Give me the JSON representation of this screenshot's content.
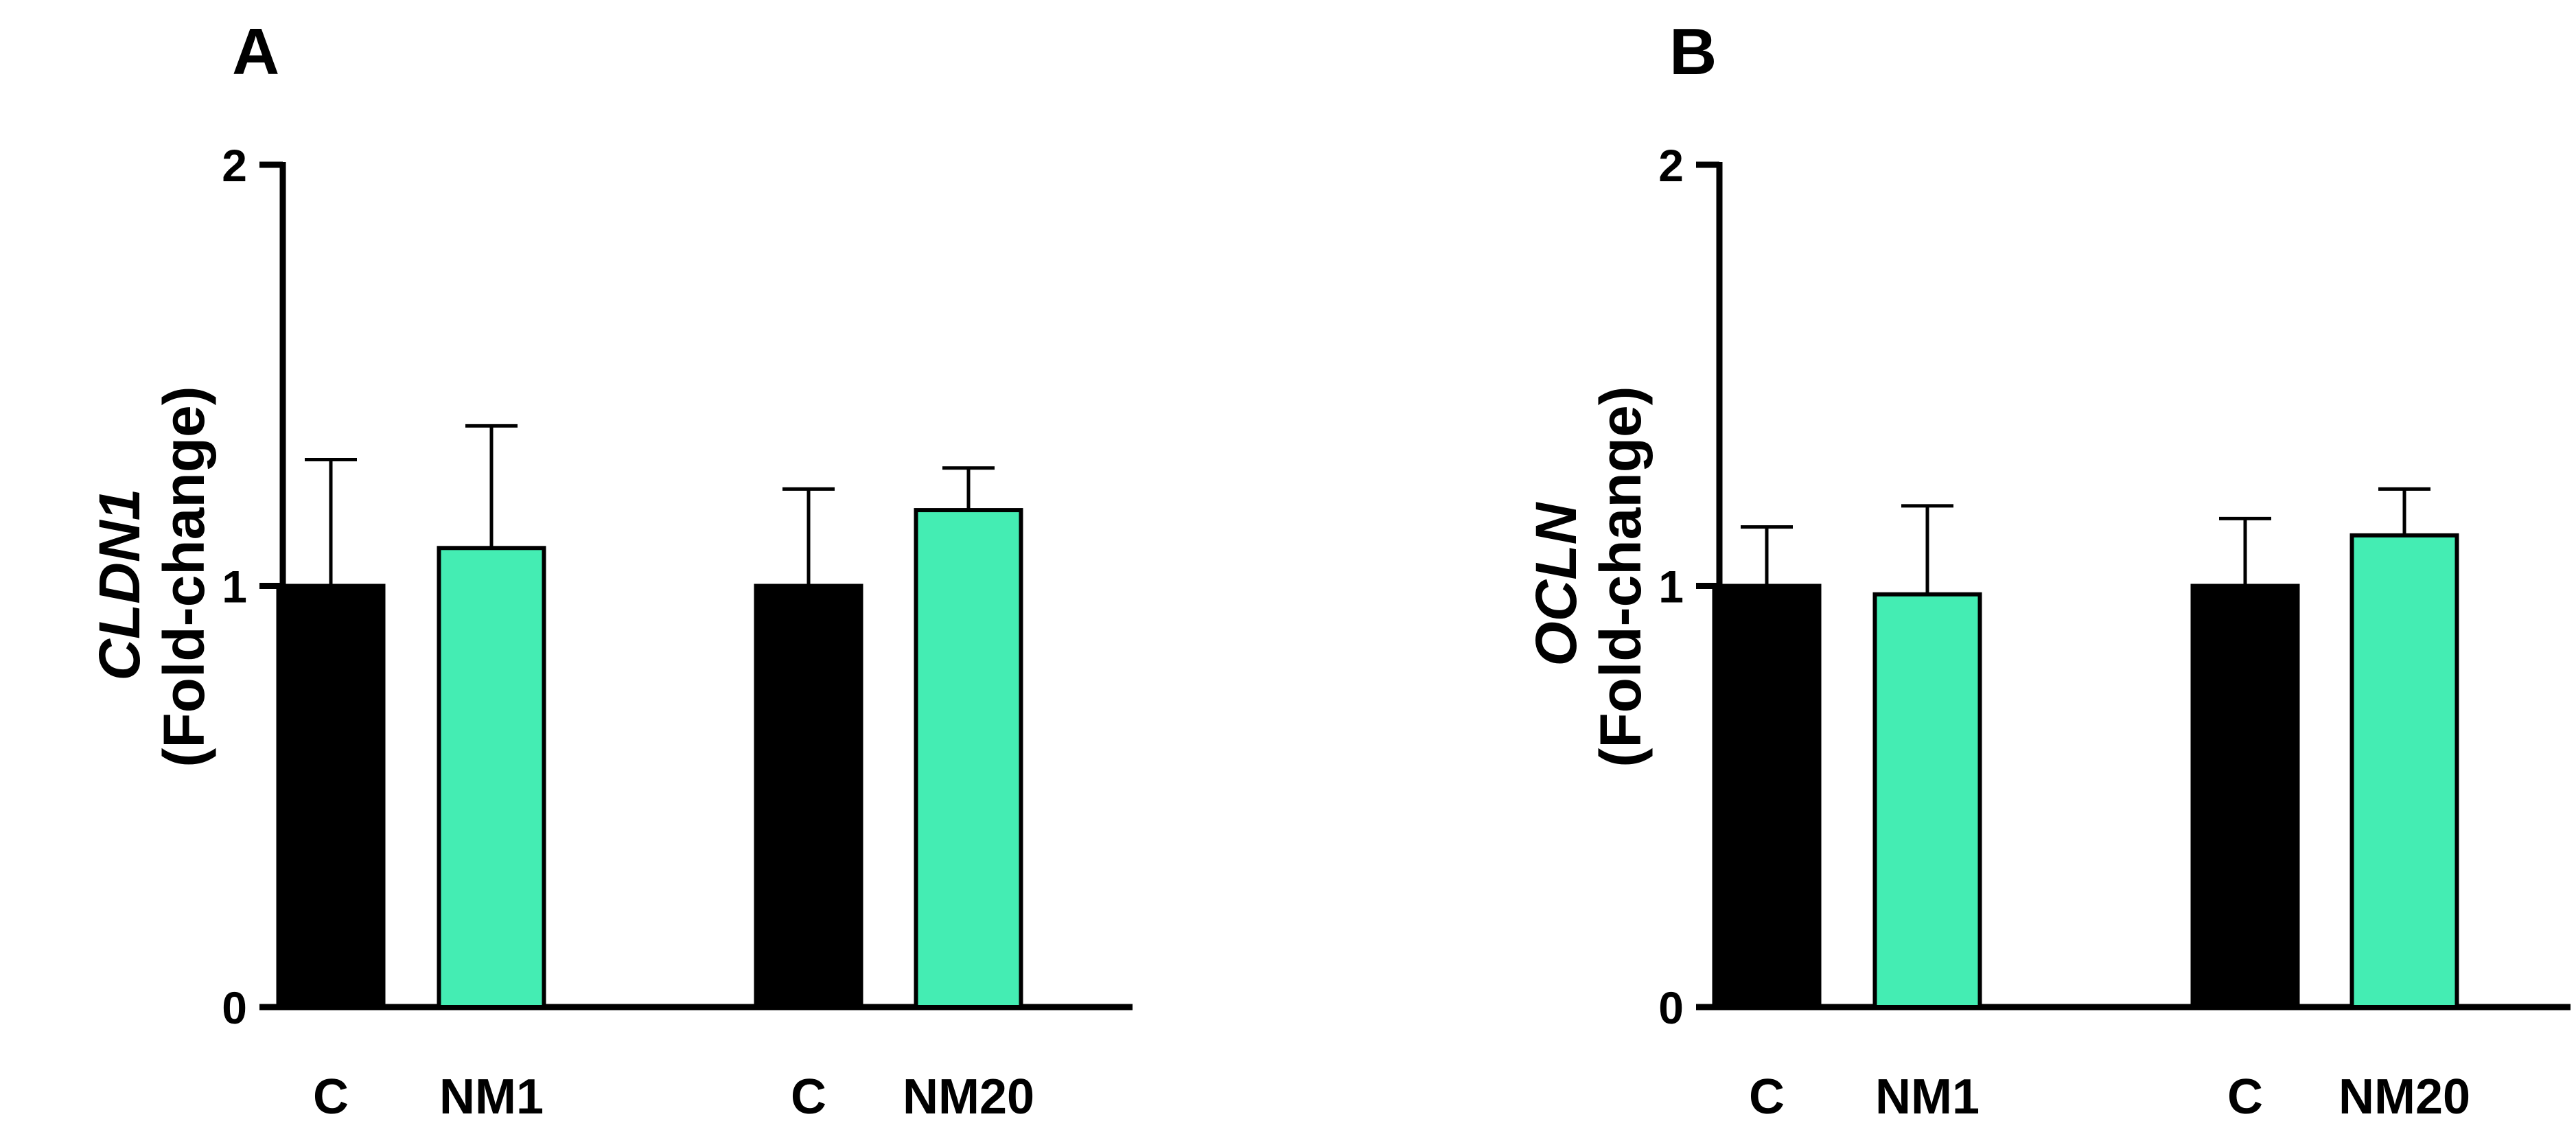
{
  "chart_data": [
    {
      "type": "bar",
      "panel_label": "A",
      "ylabel_gene": "CLDN1",
      "ylabel_unit": "(Fold-change)",
      "ylim": [
        0,
        2
      ],
      "yticks": [
        0,
        1,
        2
      ],
      "grid": false,
      "groups": [
        {
          "categories": [
            "C",
            "NM1"
          ],
          "values": [
            1.0,
            1.09
          ],
          "errors": [
            0.3,
            0.29
          ]
        },
        {
          "categories": [
            "C",
            "NM20"
          ],
          "values": [
            1.0,
            1.18
          ],
          "errors": [
            0.23,
            0.1
          ]
        }
      ],
      "colors": {
        "control": "#000000",
        "treatment": "#44EDB3"
      }
    },
    {
      "type": "bar",
      "panel_label": "B",
      "ylabel_gene": "OCLN",
      "ylabel_unit": "(Fold-change)",
      "ylim": [
        0,
        2
      ],
      "yticks": [
        0,
        1,
        2
      ],
      "grid": false,
      "groups": [
        {
          "categories": [
            "C",
            "NM1"
          ],
          "values": [
            1.0,
            0.98
          ],
          "errors": [
            0.14,
            0.21
          ]
        },
        {
          "categories": [
            "C",
            "NM20"
          ],
          "values": [
            1.0,
            1.12
          ],
          "errors": [
            0.16,
            0.11
          ]
        }
      ],
      "colors": {
        "control": "#000000",
        "treatment": "#44EDB3"
      }
    }
  ]
}
